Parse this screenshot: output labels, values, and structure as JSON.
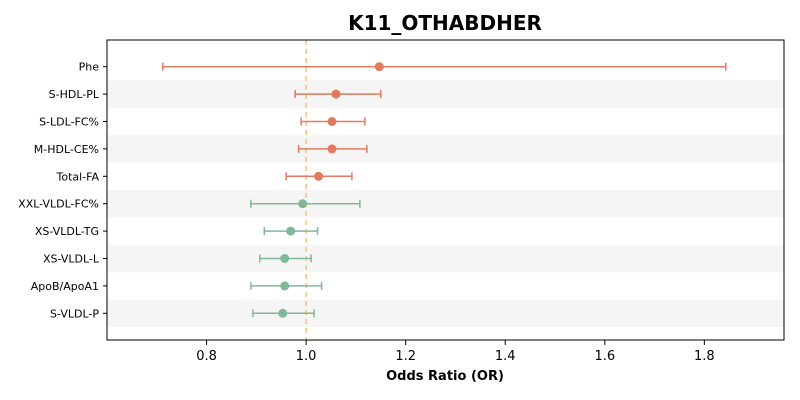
{
  "chart_data": {
    "type": "forest",
    "title": "K11_OTHABDHER",
    "xlabel": "Odds Ratio (OR)",
    "xlim": [
      0.6,
      1.96
    ],
    "xticks": [
      0.8,
      1.0,
      1.2,
      1.4,
      1.6,
      1.8
    ],
    "xtick_labels": [
      "0.8",
      "1.0",
      "1.2",
      "1.4",
      "1.6",
      "1.8"
    ],
    "reference_line": 1.0,
    "colors": {
      "positive": "#e07b5f",
      "negative": "#82b89a",
      "reference": "#f0c27a",
      "band": "#f5f5f5"
    },
    "rows": [
      {
        "label": "Phe",
        "or": 1.147,
        "lo": 0.712,
        "hi": 1.843,
        "direction": "positive"
      },
      {
        "label": "S-HDL-PL",
        "or": 1.06,
        "lo": 0.978,
        "hi": 1.15,
        "direction": "positive"
      },
      {
        "label": "S-LDL-FC%",
        "or": 1.052,
        "lo": 0.99,
        "hi": 1.118,
        "direction": "positive"
      },
      {
        "label": "M-HDL-CE%",
        "or": 1.052,
        "lo": 0.985,
        "hi": 1.122,
        "direction": "positive"
      },
      {
        "label": "Total-FA",
        "or": 1.025,
        "lo": 0.96,
        "hi": 1.092,
        "direction": "positive"
      },
      {
        "label": "XXL-VLDL-FC%",
        "or": 0.993,
        "lo": 0.889,
        "hi": 1.108,
        "direction": "negative"
      },
      {
        "label": "XS-VLDL-TG",
        "or": 0.969,
        "lo": 0.916,
        "hi": 1.023,
        "direction": "negative"
      },
      {
        "label": "XS-VLDL-L",
        "or": 0.957,
        "lo": 0.907,
        "hi": 1.01,
        "direction": "negative"
      },
      {
        "label": "ApoB/ApoA1",
        "or": 0.957,
        "lo": 0.889,
        "hi": 1.031,
        "direction": "negative"
      },
      {
        "label": "S-VLDL-P",
        "or": 0.953,
        "lo": 0.893,
        "hi": 1.016,
        "direction": "negative"
      }
    ]
  }
}
